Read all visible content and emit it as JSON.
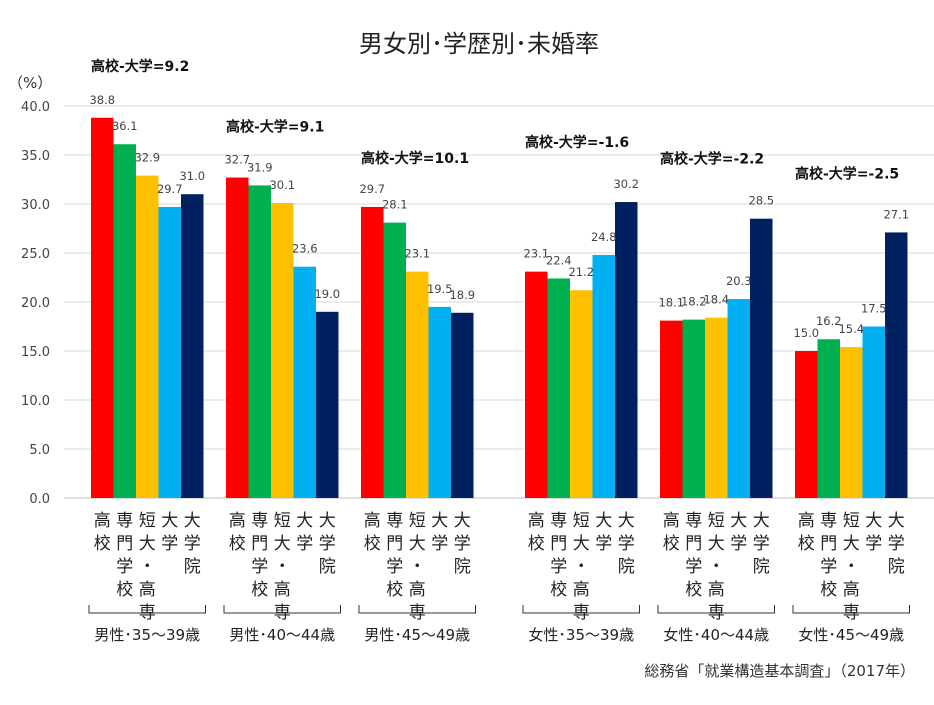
{
  "chart_data": {
    "type": "bar",
    "title": "男女別･学歴別･未婚率",
    "ylabel": "（%）",
    "ylim": [
      0,
      40
    ],
    "yticks": [
      "0.0",
      "5.0",
      "10.0",
      "15.0",
      "20.0",
      "25.0",
      "30.0",
      "35.0",
      "40.0"
    ],
    "grid": true,
    "source": "総務省「就業構造基本調査」（2017年）",
    "categories": [
      "男性･35〜39歳",
      "男性･40〜44歳",
      "男性･45〜49歳",
      "女性･35〜39歳",
      "女性･40〜44歳",
      "女性･45〜49歳"
    ],
    "annotations": [
      "高校-大学=9.2",
      "高校-大学=9.1",
      "高校-大学=10.1",
      "高校-大学=-1.6",
      "高校-大学=-2.2",
      "高校-大学=-2.5"
    ],
    "series": [
      {
        "name": "高校",
        "label_lines": [
          "高",
          "校"
        ],
        "color": "#ff0000",
        "values": [
          38.8,
          32.7,
          29.7,
          23.1,
          18.1,
          15.0
        ]
      },
      {
        "name": "専門学校",
        "label_lines": [
          "専",
          "門",
          "学",
          "校"
        ],
        "color": "#00b050",
        "values": [
          36.1,
          31.9,
          28.1,
          22.4,
          18.2,
          16.2
        ]
      },
      {
        "name": "短大・高専",
        "label_lines": [
          "短",
          "大",
          "・",
          "高",
          "専"
        ],
        "color": "#ffc000",
        "values": [
          32.9,
          30.1,
          23.1,
          21.2,
          18.4,
          15.4
        ]
      },
      {
        "name": "大学",
        "label_lines": [
          "大",
          "学"
        ],
        "color": "#00b0f0",
        "values": [
          29.7,
          23.6,
          19.5,
          24.8,
          20.3,
          17.5
        ]
      },
      {
        "name": "大学院",
        "label_lines": [
          "大",
          "学",
          "院"
        ],
        "color": "#002060",
        "values": [
          31.0,
          19.0,
          18.9,
          30.2,
          28.5,
          27.1
        ]
      }
    ]
  }
}
